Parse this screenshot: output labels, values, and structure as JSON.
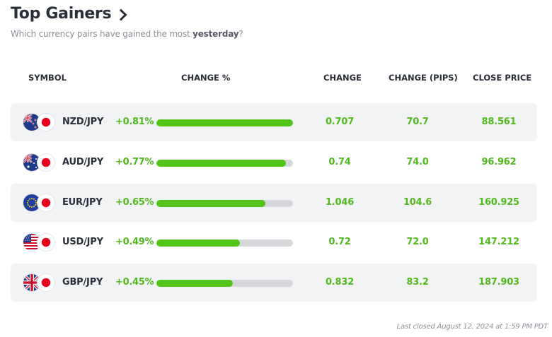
{
  "widget": {
    "title": "Top Gainers",
    "subtitle_prefix": "Which currency pairs have gained the most ",
    "subtitle_emphasis": "yesterday",
    "subtitle_suffix": "?",
    "footer": "Last closed August 12, 2024 at 1:59 PM PDT"
  },
  "columns": {
    "symbol": "SYMBOL",
    "change_pct": "CHANGE %",
    "change": "CHANGE",
    "change_pips": "CHANGE (PIPS)",
    "close_price": "CLOSE PRICE"
  },
  "colors": {
    "positive": "#52b820",
    "bar_fill": "#52c41a",
    "bar_track": "#d5d7db",
    "row_shade": "#f2f3f5",
    "title": "#2b2f3a"
  },
  "rows": [
    {
      "symbol": "NZD/JPY",
      "base_flag": "nz-flag-icon",
      "quote_flag": "jp-flag-icon",
      "change_pct": "+0.81%",
      "bar_fraction": 1.0,
      "change": "0.707",
      "change_pips": "70.7",
      "close_price": "88.561"
    },
    {
      "symbol": "AUD/JPY",
      "base_flag": "au-flag-icon",
      "quote_flag": "jp-flag-icon",
      "change_pct": "+0.77%",
      "bar_fraction": 0.95,
      "change": "0.74",
      "change_pips": "74.0",
      "close_price": "96.962"
    },
    {
      "symbol": "EUR/JPY",
      "base_flag": "eu-flag-icon",
      "quote_flag": "jp-flag-icon",
      "change_pct": "+0.65%",
      "bar_fraction": 0.8,
      "change": "1.046",
      "change_pips": "104.6",
      "close_price": "160.925"
    },
    {
      "symbol": "USD/JPY",
      "base_flag": "us-flag-icon",
      "quote_flag": "jp-flag-icon",
      "change_pct": "+0.49%",
      "bar_fraction": 0.61,
      "change": "0.72",
      "change_pips": "72.0",
      "close_price": "147.212"
    },
    {
      "symbol": "GBP/JPY",
      "base_flag": "gb-flag-icon",
      "quote_flag": "jp-flag-icon",
      "change_pct": "+0.45%",
      "bar_fraction": 0.56,
      "change": "0.832",
      "change_pips": "83.2",
      "close_price": "187.903"
    }
  ]
}
